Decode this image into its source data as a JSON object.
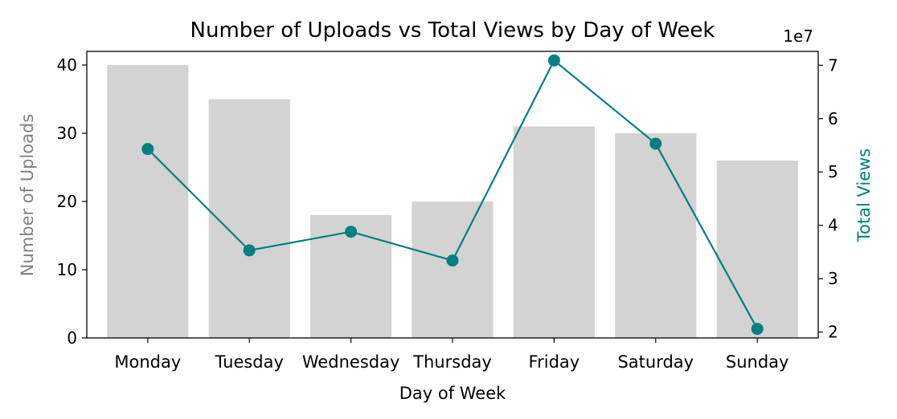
{
  "chart_data": {
    "type": "bar",
    "title": "Number of Uploads vs Total Views by Day of Week",
    "xlabel": "Day of Week",
    "categories": [
      "Monday",
      "Tuesday",
      "Wednesday",
      "Thursday",
      "Friday",
      "Saturday",
      "Sunday"
    ],
    "bar_series": {
      "name": "Number of Uploads",
      "axis": "left",
      "values": [
        40,
        35,
        18,
        20,
        31,
        30,
        26
      ],
      "color": "#d3d3d3"
    },
    "line_series": {
      "name": "Total Views",
      "axis": "right",
      "values": [
        54300000,
        35300000,
        38800000,
        33400000,
        70900000,
        55300000,
        20600000
      ],
      "color": "#008080"
    },
    "y_left": {
      "label": "Number of Uploads",
      "label_color": "#808080",
      "ylim": [
        0,
        42
      ],
      "ticks": [
        0,
        10,
        20,
        30,
        40
      ],
      "tick_labels": [
        "0",
        "10",
        "20",
        "30",
        "40"
      ]
    },
    "y_right": {
      "label": "Total Views",
      "label_color": "#008080",
      "ylim": [
        18900000,
        72600000
      ],
      "ticks": [
        20000000,
        30000000,
        40000000,
        50000000,
        60000000,
        70000000
      ],
      "tick_labels": [
        "2",
        "3",
        "4",
        "5",
        "6",
        "7"
      ],
      "offset_text": "1e7"
    },
    "grid": false,
    "legend": "none"
  }
}
